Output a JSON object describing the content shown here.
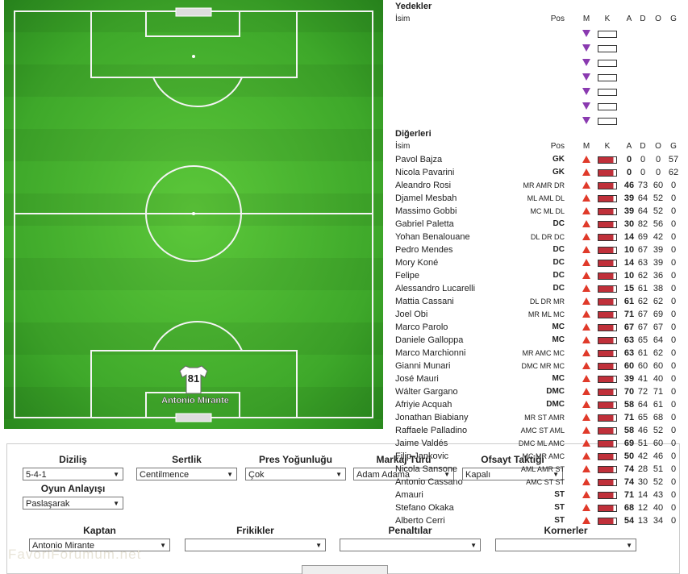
{
  "pitch": {
    "player": {
      "number": "81",
      "name": "Antonio Mirante"
    }
  },
  "substitutes": {
    "title": "Yedekler",
    "headers": [
      "İsim",
      "Pos",
      "M",
      "K",
      "A",
      "D",
      "O",
      "G"
    ]
  },
  "others": {
    "title": "Diğerleri",
    "headers": [
      "İsim",
      "Pos",
      "M",
      "K",
      "A",
      "D",
      "O",
      "G"
    ],
    "rows": [
      {
        "name": "Pavol Bajza",
        "pos": "GK",
        "a": 0,
        "d": 0,
        "o": 0,
        "g": 57
      },
      {
        "name": "Nicola Pavarini",
        "pos": "GK",
        "a": 0,
        "d": 0,
        "o": 0,
        "g": 62
      },
      {
        "name": "Aleandro Rosi",
        "pos": "MR AMR DR",
        "a": 46,
        "d": 73,
        "o": 60,
        "g": 0
      },
      {
        "name": "Djamel Mesbah",
        "pos": "ML AML DL",
        "a": 39,
        "d": 64,
        "o": 52,
        "g": 0
      },
      {
        "name": "Massimo Gobbi",
        "pos": "MC ML DL",
        "a": 39,
        "d": 64,
        "o": 52,
        "g": 0
      },
      {
        "name": "Gabriel Paletta",
        "pos": "DC",
        "a": 30,
        "d": 82,
        "o": 56,
        "g": 0
      },
      {
        "name": "Yohan Benalouane",
        "pos": "DL DR DC",
        "a": 14,
        "d": 69,
        "o": 42,
        "g": 0
      },
      {
        "name": "Pedro Mendes",
        "pos": "DC",
        "a": 10,
        "d": 67,
        "o": 39,
        "g": 0
      },
      {
        "name": "Mory Koné",
        "pos": "DC",
        "a": 14,
        "d": 63,
        "o": 39,
        "g": 0
      },
      {
        "name": "Felipe",
        "pos": "DC",
        "a": 10,
        "d": 62,
        "o": 36,
        "g": 0
      },
      {
        "name": "Alessandro Lucarelli",
        "pos": "DC",
        "a": 15,
        "d": 61,
        "o": 38,
        "g": 0
      },
      {
        "name": "Mattia Cassani",
        "pos": "DL DR MR",
        "a": 61,
        "d": 62,
        "o": 62,
        "g": 0
      },
      {
        "name": "Joel Obi",
        "pos": "MR ML MC",
        "a": 71,
        "d": 67,
        "o": 69,
        "g": 0
      },
      {
        "name": "Marco Parolo",
        "pos": "MC",
        "a": 67,
        "d": 67,
        "o": 67,
        "g": 0
      },
      {
        "name": "Daniele Galloppa",
        "pos": "MC",
        "a": 63,
        "d": 65,
        "o": 64,
        "g": 0
      },
      {
        "name": "Marco Marchionni",
        "pos": "MR AMC MC",
        "a": 63,
        "d": 61,
        "o": 62,
        "g": 0
      },
      {
        "name": "Gianni Munari",
        "pos": "DMC MR MC",
        "a": 60,
        "d": 60,
        "o": 60,
        "g": 0
      },
      {
        "name": "José Mauri",
        "pos": "MC",
        "a": 39,
        "d": 41,
        "o": 40,
        "g": 0
      },
      {
        "name": "Wálter Gargano",
        "pos": "DMC",
        "a": 70,
        "d": 72,
        "o": 71,
        "g": 0
      },
      {
        "name": "Afriyie Acquah",
        "pos": "DMC",
        "a": 58,
        "d": 64,
        "o": 61,
        "g": 0
      },
      {
        "name": "Jonathan Biabiany",
        "pos": "MR ST AMR",
        "a": 71,
        "d": 65,
        "o": 68,
        "g": 0
      },
      {
        "name": "Raffaele Palladino",
        "pos": "AMC ST AML",
        "a": 58,
        "d": 46,
        "o": 52,
        "g": 0
      },
      {
        "name": "Jaime Valdés",
        "pos": "DMC ML AMC",
        "a": 69,
        "d": 51,
        "o": 60,
        "g": 0
      },
      {
        "name": "Filip Jankovic",
        "pos": "MC MR AMC",
        "a": 50,
        "d": 42,
        "o": 46,
        "g": 0
      },
      {
        "name": "Nicola Sansone",
        "pos": "AML AMR ST",
        "a": 74,
        "d": 28,
        "o": 51,
        "g": 0
      },
      {
        "name": "Antonio Cassano",
        "pos": "AMC ST ST",
        "a": 74,
        "d": 30,
        "o": 52,
        "g": 0
      },
      {
        "name": "Amauri",
        "pos": "ST",
        "a": 71,
        "d": 14,
        "o": 43,
        "g": 0
      },
      {
        "name": "Stefano Okaka",
        "pos": "ST",
        "a": 68,
        "d": 12,
        "o": 40,
        "g": 0
      },
      {
        "name": "Alberto Cerri",
        "pos": "ST",
        "a": 54,
        "d": 13,
        "o": 34,
        "g": 0
      }
    ]
  },
  "tactics": {
    "fields": [
      {
        "label": "Diziliş",
        "value": "5-4-1"
      },
      {
        "label": "Sertlik",
        "value": "Centilmence"
      },
      {
        "label": "Pres Yoğunluğu",
        "value": "Çok"
      },
      {
        "label": "Markaj Türü",
        "value": "Adam Adama"
      },
      {
        "label": "Ofsayt Taktiği",
        "value": "Kapalı"
      },
      {
        "label": "Oyun Anlayışı",
        "value": "Paslaşarak"
      },
      {
        "label": "Kaptan",
        "value": "Antonio Mirante"
      },
      {
        "label": "Frikikler"
      },
      {
        "label": "Penaltılar"
      },
      {
        "label": "Kornerler"
      }
    ]
  },
  "watermark": "FavoriForumum.net"
}
